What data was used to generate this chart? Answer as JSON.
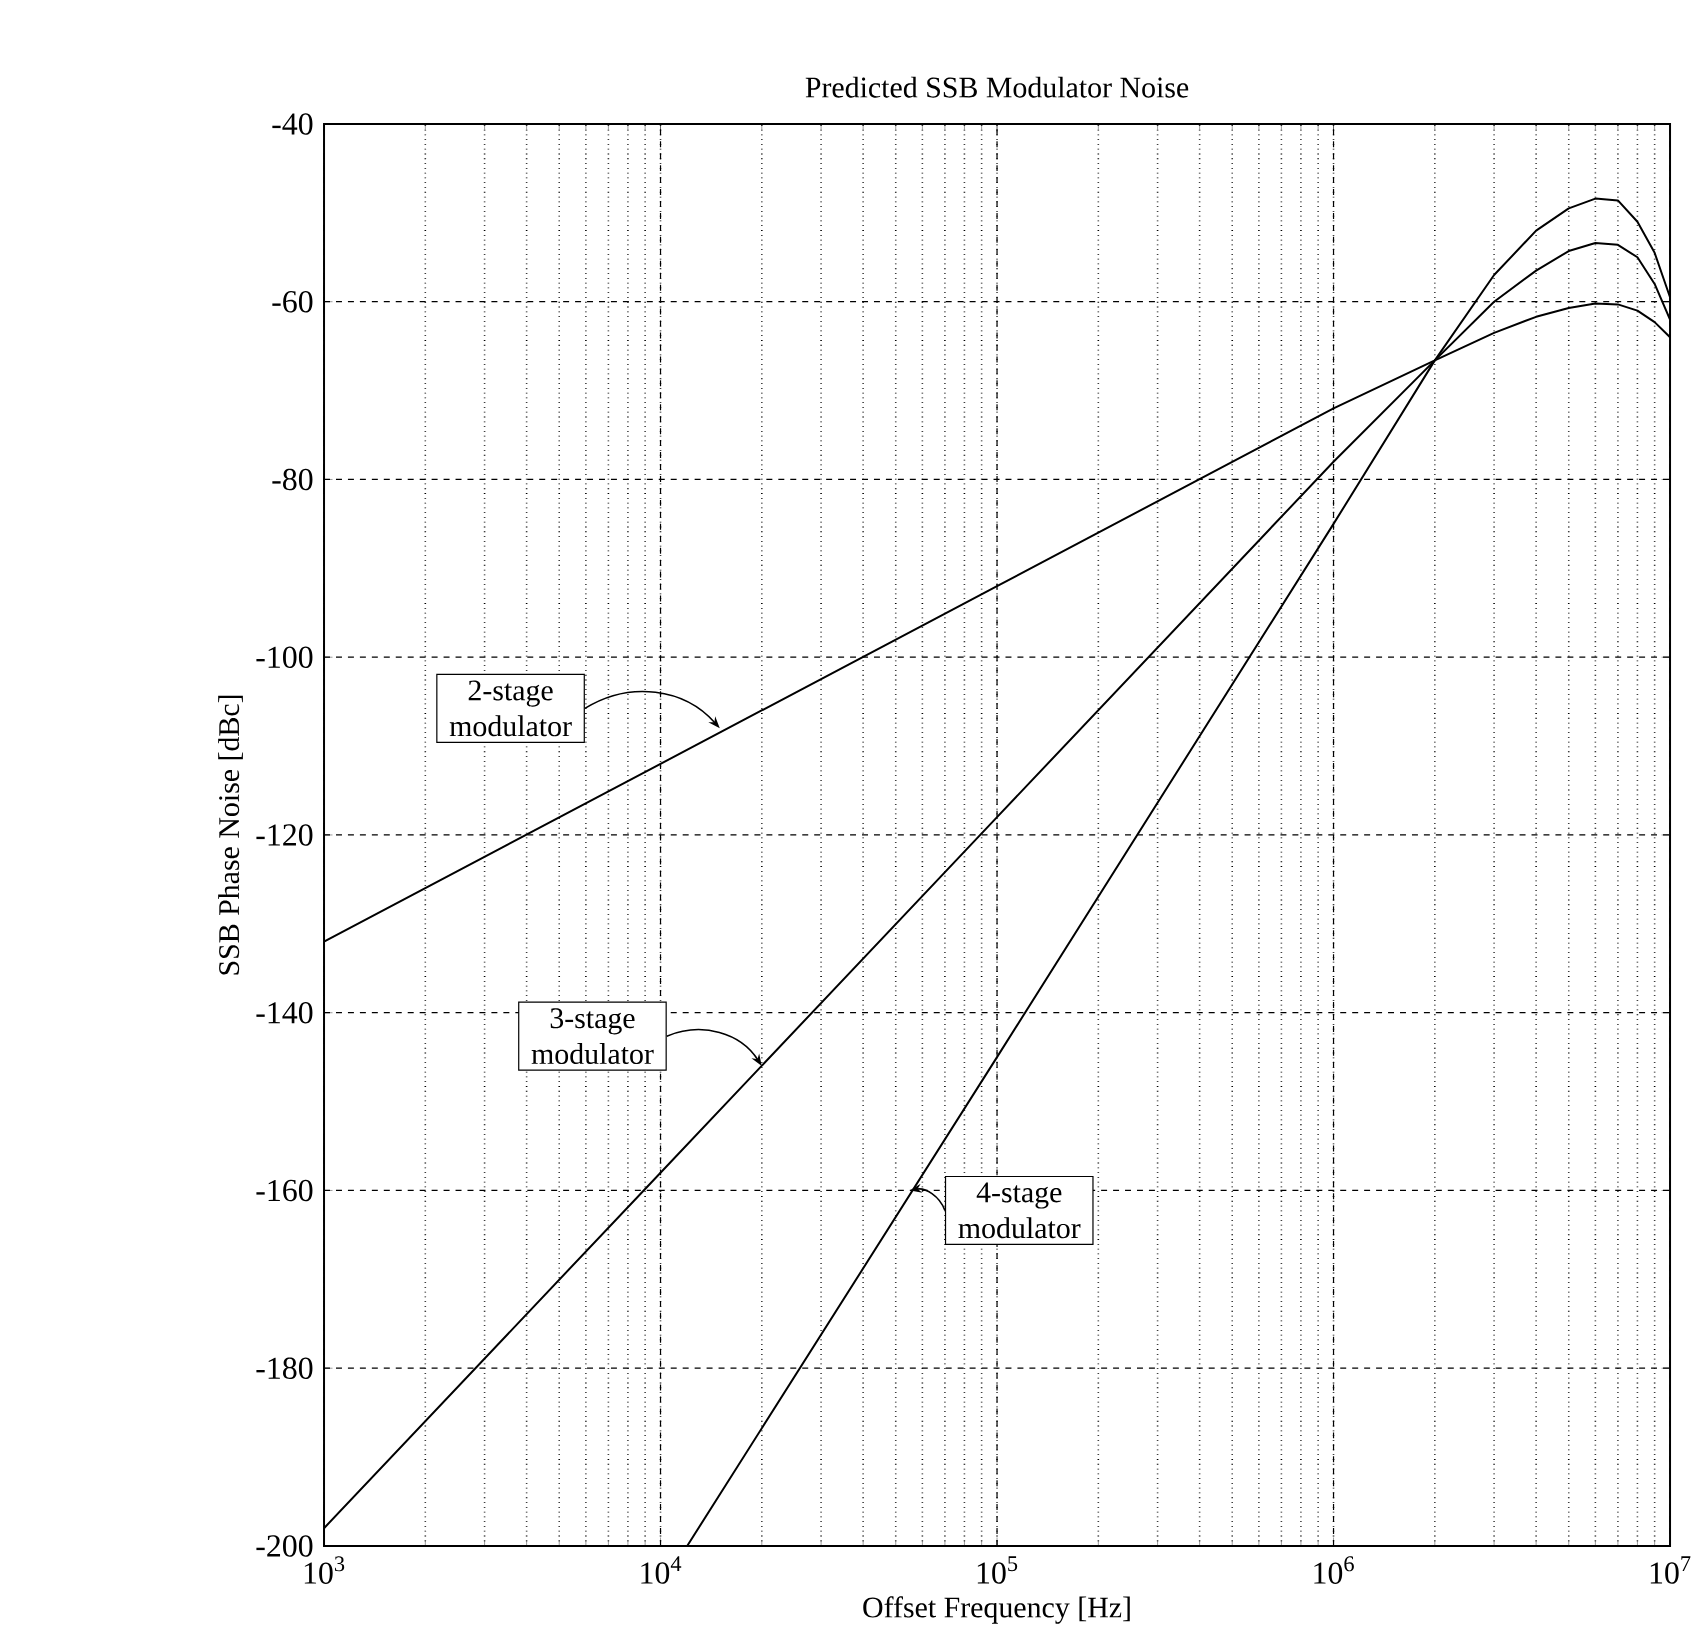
{
  "chart_data": {
    "type": "line",
    "title": "Predicted SSB Modulator Noise",
    "xlabel": "Offset Frequency [Hz]",
    "ylabel": "SSB Phase Noise [dBc]",
    "log": "x",
    "grid": true,
    "line_style": "solid",
    "marker": "none",
    "xlim": [
      1000,
      10000000
    ],
    "ylim": [
      -200,
      -40
    ],
    "xticks": [
      {
        "value": 1000,
        "label": "10$^{3}$"
      },
      {
        "value": 10000,
        "label": "10$^{4}$"
      },
      {
        "value": 100000,
        "label": "10$^{5}$"
      },
      {
        "value": 1000000,
        "label": "10$^{6}$"
      },
      {
        "value": 10000000,
        "label": "10$^{7}$"
      }
    ],
    "yticks": [
      -200,
      -180,
      -160,
      -140,
      -120,
      -100,
      -80,
      -60,
      -40
    ],
    "series": [
      {
        "color": "#000000",
        "x": [
          1000,
          10000,
          100000,
          1000000,
          2000000,
          3000000,
          4000000,
          5000000,
          6000000,
          7000000,
          8000000,
          9000000,
          10000000
        ],
        "values": [
          -132,
          -112,
          -92,
          -72,
          -66.6,
          -63.5,
          -61.7,
          -60.7,
          -60.2,
          -60.3,
          -61,
          -62.3,
          -64
        ]
      },
      {
        "color": "#000000",
        "x": [
          1000,
          10000,
          100000,
          1000000,
          2000000,
          3000000,
          4000000,
          5000000,
          6000000,
          7000000,
          8000000,
          9000000,
          10000000
        ],
        "values": [
          -198,
          -158,
          -118,
          -78,
          -66.6,
          -60,
          -56.5,
          -54.3,
          -53.4,
          -53.6,
          -55,
          -58,
          -62
        ]
      },
      {
        "color": "#000000",
        "x": [
          12000,
          100000,
          1000000,
          2000000,
          3000000,
          4000000,
          5000000,
          6000000,
          7000000,
          8000000,
          9000000,
          10000000
        ],
        "values": [
          -200,
          -145,
          -85,
          -66.6,
          -57,
          -52,
          -49.5,
          -48.4,
          -48.6,
          -51,
          -54.5,
          -59.5
        ]
      }
    ],
    "annotations": [
      {
        "text": "2-stage modulator",
        "x": 15000,
        "y": -108
      },
      {
        "text": "3-stage modulator",
        "x": 20000,
        "y": -146
      },
      {
        "text": "4-stage modulator",
        "x": 55000,
        "y": -160
      }
    ]
  }
}
